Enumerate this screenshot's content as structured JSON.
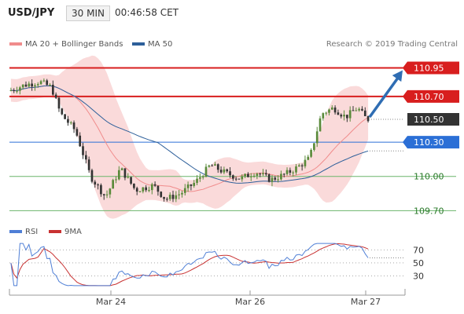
{
  "header": {
    "pair": "USD/JPY",
    "timeframe": "30 MIN",
    "time": "00:46:58 CET"
  },
  "legend": {
    "ma20": "MA 20 + Bollinger Bands",
    "ma50": "MA 50",
    "rsi": "RSI",
    "ma9": "9MA"
  },
  "credit": "Research © 2019 Trading Central",
  "colors": {
    "resistance": "#d81e1e",
    "support_blue": "#2b6fd6",
    "pivot_green": "#6ab56a",
    "candle_up": "#5a8a3a",
    "candle_down": "#333333",
    "band_fill": "#fadada",
    "ma20": "#f08c8c",
    "ma50": "#2d5f9a",
    "arrow": "#2f6db3",
    "rsi": "#4f7fd6",
    "rsi_ma": "#c83232",
    "label_last": "#333333"
  },
  "chart_data": [
    {
      "type": "candlestick",
      "title": "USD/JPY",
      "series": [
        {
          "name": "MA 20 + Bollinger Bands"
        },
        {
          "name": "MA 50"
        }
      ],
      "x_tick_labels": [
        "Mar 24",
        "Mar 26",
        "Mar 27"
      ],
      "ylim": [
        109.62,
        111.05
      ],
      "levels": [
        {
          "value": 110.95,
          "label": "110.95",
          "kind": "resistance"
        },
        {
          "value": 110.7,
          "label": "110.70",
          "kind": "resistance"
        },
        {
          "value": 110.5,
          "label": "110.50",
          "kind": "last"
        },
        {
          "value": 110.3,
          "label": "110.30",
          "kind": "support"
        },
        {
          "value": 110.0,
          "label": "110.00",
          "kind": "pivot"
        },
        {
          "value": 109.7,
          "label": "109.70",
          "kind": "pivot"
        }
      ],
      "price_path": [
        [
          0,
          110.75
        ],
        [
          5,
          110.8
        ],
        [
          10,
          110.83
        ],
        [
          14,
          110.78
        ],
        [
          17,
          110.55
        ],
        [
          22,
          110.4
        ],
        [
          27,
          110.0
        ],
        [
          32,
          109.82
        ],
        [
          37,
          110.07
        ],
        [
          42,
          109.88
        ],
        [
          48,
          109.92
        ],
        [
          52,
          109.8
        ],
        [
          57,
          109.85
        ],
        [
          62,
          109.95
        ],
        [
          67,
          110.1
        ],
        [
          72,
          110.03
        ],
        [
          77,
          109.98
        ],
        [
          82,
          110.04
        ],
        [
          87,
          109.97
        ],
        [
          92,
          110.02
        ],
        [
          96,
          110.08
        ],
        [
          100,
          110.16
        ],
        [
          104,
          110.55
        ],
        [
          108,
          110.6
        ],
        [
          112,
          110.52
        ],
        [
          116,
          110.6
        ],
        [
          119,
          110.5
        ]
      ],
      "arrow": {
        "from": [
          120,
          110.52
        ],
        "to": [
          131,
          110.93
        ]
      }
    },
    {
      "type": "line",
      "series": [
        {
          "name": "RSI"
        },
        {
          "name": "9MA"
        }
      ],
      "y_ticks": [
        70,
        50,
        30
      ],
      "ylim": [
        10,
        85
      ]
    }
  ]
}
